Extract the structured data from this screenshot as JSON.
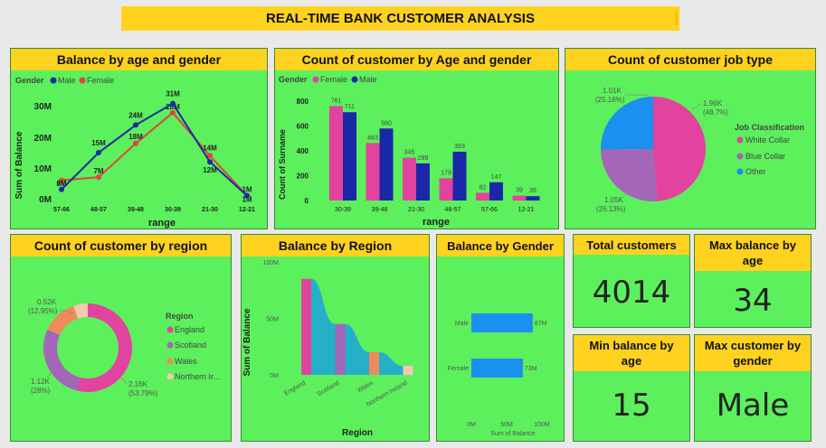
{
  "dashboard_title": "REAL-TIME BANK CUSTOMER ANALYSIS",
  "panels": {
    "balance_age_gender": {
      "title": "Balance by age and gender",
      "legend_label": "Gender",
      "legend_items": [
        "Male",
        "Female"
      ],
      "ylabel": "Sum of Balance",
      "xlabel": "range",
      "y_ticks": [
        "0M",
        "10M",
        "20M",
        "30M"
      ],
      "categories": [
        "57-66",
        "48-57",
        "39-48",
        "30-39",
        "21-30",
        "12-21"
      ],
      "male_labels": [
        "3M",
        "15M",
        "24M",
        "31M",
        "12M",
        "1M"
      ],
      "female_labels": [
        "6M",
        "7M",
        "18M",
        "28M",
        "14M",
        "1M"
      ]
    },
    "count_age_gender": {
      "title": "Count of customer by Age and gender",
      "legend_label": "Gender",
      "legend_items": [
        "Female",
        "Male"
      ],
      "ylabel": "Count of Surname",
      "xlabel": "range",
      "y_ticks": [
        "0",
        "200",
        "400",
        "600",
        "800"
      ],
      "categories": [
        "30-39",
        "39-48",
        "21-30",
        "48-57",
        "57-66",
        "12-21"
      ],
      "female_labels": [
        "761",
        "463",
        "345",
        "179",
        "62",
        "39"
      ],
      "male_labels": [
        "711",
        "580",
        "299",
        "393",
        "147",
        "35"
      ]
    },
    "job_type": {
      "title": "Count of customer job type",
      "legend_title": "Job Classification",
      "legend_items": [
        "White Collar",
        "Blue Collar",
        "Other"
      ],
      "labels": [
        [
          "1.96K",
          "(48.7%)"
        ],
        [
          "1.05K",
          "(26.13%)"
        ],
        [
          "1.01K",
          "(25.16%)"
        ]
      ]
    },
    "region": {
      "title": "Count of customer by region",
      "legend_title": "Region",
      "legend_items": [
        "England",
        "Scotland",
        "Wales",
        "Northern Ir..."
      ],
      "labels": [
        [
          "2.16K",
          "(53.79%)"
        ],
        [
          "1.12K",
          "(28%)"
        ],
        [
          "0.52K",
          "(12.95%)"
        ]
      ]
    },
    "balance_region": {
      "title": "Balance by Region",
      "ylabel": "Sum of Balance",
      "xlabel": "Region",
      "y_ticks": [
        "0M",
        "50M",
        "100M"
      ],
      "categories": [
        "England",
        "Scotland",
        "Wales",
        "Northern Ireland"
      ]
    },
    "balance_gender": {
      "title": "Balance by Gender",
      "categories": [
        "Male",
        "Female"
      ],
      "value_labels": [
        "87M",
        "73M"
      ],
      "x_ticks": [
        "0M",
        "50M",
        "100M"
      ],
      "xlabel": "Sum of Balance"
    },
    "kpis": [
      {
        "title": "Total customers",
        "value": "4014"
      },
      {
        "title": "Max balance by age",
        "value": "34"
      },
      {
        "title": "Min balance by age",
        "value": "15"
      },
      {
        "title": "Max customer by gender",
        "value": "Male"
      }
    ]
  },
  "colors": {
    "male": "#1a2aa0",
    "female": "#e0443f",
    "female_bar": "#e2439f",
    "male_bar": "#1a28a8",
    "white_collar": "#e2439f",
    "blue_collar": "#a466b8",
    "other": "#1a90f0",
    "england": "#e2439f",
    "scotland": "#a466b8",
    "wales": "#f08a5a",
    "northern_ireland": "#f5c9b0",
    "ribbon_teal": "#25b0c8",
    "ribbon_yellow": "#f0d450",
    "gender_bar": "#1a90f0"
  },
  "chart_data": [
    {
      "type": "line",
      "title": "Balance by age and gender",
      "xlabel": "range",
      "ylabel": "Sum of Balance",
      "categories": [
        "57-66",
        "48-57",
        "39-48",
        "30-39",
        "21-30",
        "12-21"
      ],
      "series": [
        {
          "name": "Male",
          "values": [
            3,
            15,
            24,
            31,
            12,
            1
          ]
        },
        {
          "name": "Female",
          "values": [
            6,
            7,
            18,
            28,
            14,
            1
          ]
        }
      ],
      "unit": "M",
      "ylim": [
        0,
        35
      ]
    },
    {
      "type": "bar",
      "title": "Count of customer by Age and gender",
      "xlabel": "range",
      "ylabel": "Count of Surname",
      "categories": [
        "30-39",
        "39-48",
        "21-30",
        "48-57",
        "57-66",
        "12-21"
      ],
      "series": [
        {
          "name": "Female",
          "values": [
            761,
            463,
            345,
            179,
            62,
            39
          ]
        },
        {
          "name": "Male",
          "values": [
            711,
            580,
            299,
            393,
            147,
            35
          ]
        }
      ],
      "ylim": [
        0,
        800
      ]
    },
    {
      "type": "pie",
      "title": "Count of customer job type",
      "categories": [
        "White Collar",
        "Blue Collar",
        "Other"
      ],
      "values": [
        1.96,
        1.05,
        1.01
      ],
      "percent": [
        48.7,
        26.13,
        25.16
      ],
      "unit": "K"
    },
    {
      "type": "pie",
      "title": "Count of customer by region",
      "categories": [
        "England",
        "Scotland",
        "Wales",
        "Northern Ireland"
      ],
      "values": [
        2.16,
        1.12,
        0.52,
        0.21
      ],
      "percent": [
        53.79,
        28,
        12.95,
        5.26
      ],
      "unit": "K"
    },
    {
      "type": "bar",
      "title": "Balance by Region",
      "xlabel": "Region",
      "ylabel": "Sum of Balance",
      "categories": [
        "England",
        "Scotland",
        "Wales",
        "Northern Ireland"
      ],
      "values": [
        85,
        45,
        20,
        8
      ],
      "unit": "M",
      "ylim": [
        0,
        100
      ]
    },
    {
      "type": "bar",
      "title": "Balance by Gender",
      "xlabel": "Sum of Balance",
      "categories": [
        "Male",
        "Female"
      ],
      "values": [
        87,
        73
      ],
      "unit": "M",
      "xlim": [
        0,
        100
      ]
    }
  ]
}
